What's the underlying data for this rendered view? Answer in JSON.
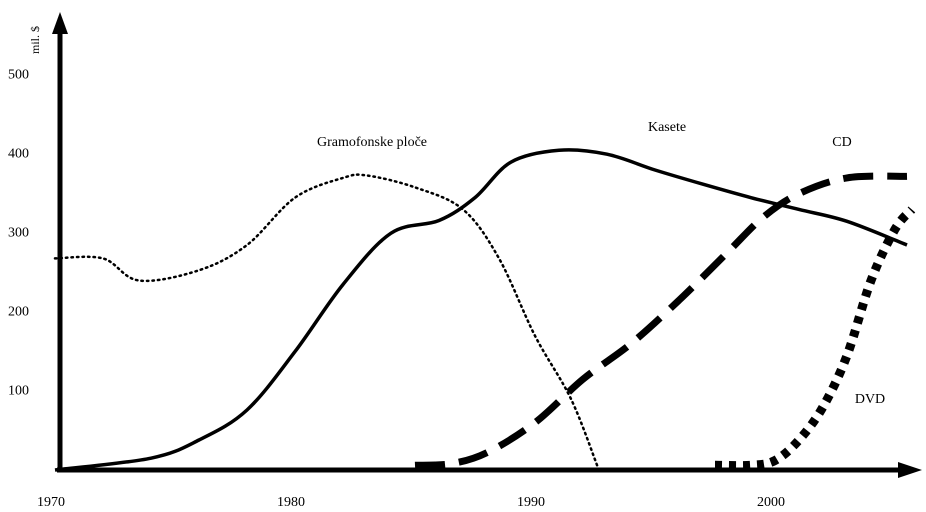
{
  "chart_data": {
    "type": "line",
    "y_label": "mil. $",
    "xlim": [
      1970,
      2006
    ],
    "ylim": [
      0,
      570
    ],
    "xticks": [
      1970,
      1980,
      1990,
      2000
    ],
    "yticks": [
      100,
      200,
      300,
      400,
      500
    ],
    "color": "#000000",
    "series": [
      {
        "name": "Gramofonske ploče",
        "line_style": "dotted",
        "line_width": 2.5,
        "x": [
          1970,
          1972,
          1973.5,
          1976,
          1978,
          1980,
          1982,
          1983,
          1985,
          1987,
          1988.5,
          1990,
          1991.5,
          1992.6
        ],
        "values": [
          268,
          268,
          240,
          253,
          285,
          345,
          370,
          373,
          358,
          330,
          268,
          170,
          90,
          5
        ]
      },
      {
        "name": "Kasete",
        "line_style": "solid",
        "line_width": 3.5,
        "x": [
          1970,
          1974,
          1976,
          1978,
          1980,
          1982,
          1984,
          1986,
          1987.5,
          1989,
          1991,
          1993,
          1995,
          1997,
          1999,
          2001,
          2003,
          2005.5
        ],
        "values": [
          0,
          15,
          38,
          76,
          150,
          235,
          300,
          316,
          345,
          390,
          405,
          400,
          380,
          362,
          345,
          330,
          315,
          285
        ]
      },
      {
        "name": "CD",
        "line_style": "dashed",
        "line_width": 7,
        "x": [
          1985,
          1986.5,
          1988,
          1990,
          1992,
          1994,
          1996,
          1998,
          1999.5,
          2001,
          2003,
          2005.5
        ],
        "values": [
          6,
          8,
          22,
          60,
          115,
          160,
          215,
          275,
          320,
          350,
          370,
          372
        ]
      },
      {
        "name": "DVD",
        "line_style": "dotted-thick",
        "line_width": 9,
        "x": [
          1997.5,
          1999,
          2000,
          2001,
          2002,
          2003,
          2004,
          2005,
          2005.7
        ],
        "values": [
          6,
          6,
          12,
          38,
          80,
          145,
          240,
          305,
          330
        ]
      }
    ]
  }
}
